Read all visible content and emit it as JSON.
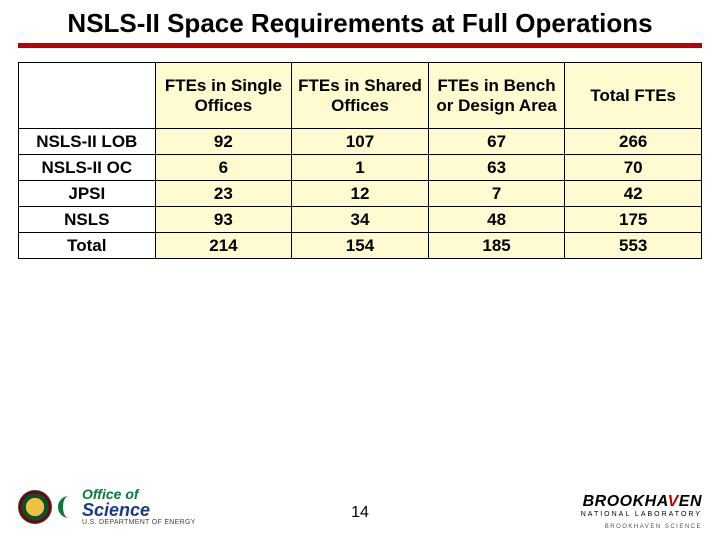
{
  "title": "NSLS-II Space Requirements at Full Operations",
  "page_number": "14",
  "table": {
    "columns": [
      "",
      "FTEs in Single Offices",
      "FTEs in Shared Offices",
      "FTEs in Bench or Design Area",
      "Total FTEs"
    ],
    "rows": [
      [
        "NSLS-II LOB",
        "92",
        "107",
        "67",
        "266"
      ],
      [
        "NSLS-II OC",
        "6",
        "1",
        "63",
        "70"
      ],
      [
        "JPSI",
        "23",
        "12",
        "7",
        "42"
      ],
      [
        "NSLS",
        "93",
        "34",
        "48",
        "175"
      ],
      [
        "Total",
        "214",
        "154",
        "185",
        "553"
      ]
    ],
    "header_bg": "#fffbd0",
    "cell_bg": "#fffbd0",
    "rowlabel_bg": "#ffffff",
    "border_color": "#000000",
    "font_size_pt": 13
  },
  "left_logo": {
    "line1": "Office of",
    "line2": "Science",
    "line3": "U.S. DEPARTMENT OF ENERGY"
  },
  "right_logo": {
    "name_pre": "BROOKHA",
    "name_v": "V",
    "name_post": "EN",
    "sub": "NATIONAL LABORATORY",
    "assoc": "BROOKHAVEN SCIENCE"
  },
  "colors": {
    "title_underline": "#c00000",
    "bnl_red": "#c00000",
    "sc_green": "#0a7a3a",
    "sc_blue": "#1a3a8a"
  }
}
